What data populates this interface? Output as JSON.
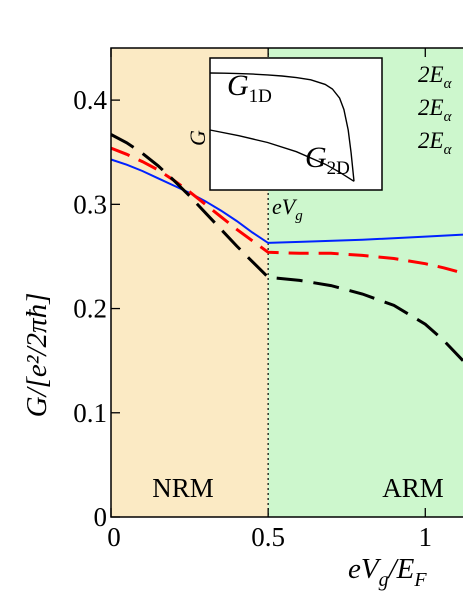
{
  "chart_data": [
    {
      "type": "line",
      "xlabel": "eV_g/E_F",
      "ylabel": "G/[e²/2πħ]",
      "xlim": [
        0,
        1.12
      ],
      "ylim": [
        0,
        0.45
      ],
      "x_ticks": [
        "0",
        "0.5",
        "1"
      ],
      "y_ticks": [
        "0",
        "0.1",
        "0.2",
        "0.3",
        "0.4"
      ],
      "regions": [
        {
          "label": "NRM",
          "x_range": [
            0,
            0.5
          ],
          "color": "#fbeac4"
        },
        {
          "label": "ARM",
          "x_range": [
            0.5,
            1.12
          ],
          "color": "#cdf7cd"
        }
      ],
      "divider_x": 0.5,
      "divider_annotation": "eV_g",
      "legend_fragments": [
        "2E_α",
        "2E_α",
        "2E_α"
      ],
      "series": [
        {
          "color": "#0022ff",
          "dash": "solid",
          "x": [
            0,
            0.05,
            0.1,
            0.15,
            0.2,
            0.25,
            0.3,
            0.35,
            0.4,
            0.45,
            0.5,
            0.6,
            0.8,
            1.0,
            1.12
          ],
          "y": [
            0.343,
            0.338,
            0.332,
            0.325,
            0.318,
            0.311,
            0.303,
            0.294,
            0.284,
            0.273,
            0.263,
            0.264,
            0.266,
            0.269,
            0.271
          ]
        },
        {
          "color": "#ff0000",
          "dash": "dashed",
          "x": [
            0,
            0.05,
            0.1,
            0.15,
            0.2,
            0.25,
            0.3,
            0.35,
            0.4,
            0.45,
            0.5,
            0.6,
            0.7,
            0.8,
            0.9,
            1.0,
            1.06,
            1.12
          ],
          "y": [
            0.354,
            0.348,
            0.341,
            0.333,
            0.323,
            0.312,
            0.3,
            0.288,
            0.276,
            0.265,
            0.254,
            0.253,
            0.253,
            0.251,
            0.248,
            0.243,
            0.239,
            0.234
          ]
        },
        {
          "color": "#000000",
          "dash": "dashed",
          "x": [
            0,
            0.05,
            0.1,
            0.15,
            0.2,
            0.25,
            0.3,
            0.35,
            0.4,
            0.45,
            0.5,
            0.6,
            0.7,
            0.8,
            0.9,
            1.0,
            1.06,
            1.12
          ],
          "y": [
            0.367,
            0.359,
            0.349,
            0.337,
            0.323,
            0.308,
            0.292,
            0.276,
            0.26,
            0.245,
            0.23,
            0.227,
            0.222,
            0.214,
            0.203,
            0.185,
            0.169,
            0.15
          ]
        }
      ]
    },
    {
      "type": "line",
      "ylabel": "G",
      "series_labels": [
        "G_1D",
        "G_2D"
      ],
      "series": [
        {
          "name": "G_1D",
          "x": [
            0,
            0.1,
            0.2,
            0.3,
            0.4,
            0.5,
            0.6,
            0.7,
            0.8,
            0.85,
            0.9,
            0.93,
            0.96,
            0.98,
            1.0
          ],
          "y": [
            1.0,
            0.998,
            0.995,
            0.99,
            0.983,
            0.974,
            0.96,
            0.94,
            0.9,
            0.86,
            0.78,
            0.68,
            0.5,
            0.3,
            0.05
          ]
        },
        {
          "name": "G_2D",
          "x": [
            0,
            0.2,
            0.4,
            0.6,
            0.8,
            0.9,
            1.0
          ],
          "y": [
            0.5,
            0.45,
            0.39,
            0.31,
            0.2,
            0.13,
            0.05
          ]
        }
      ]
    }
  ]
}
